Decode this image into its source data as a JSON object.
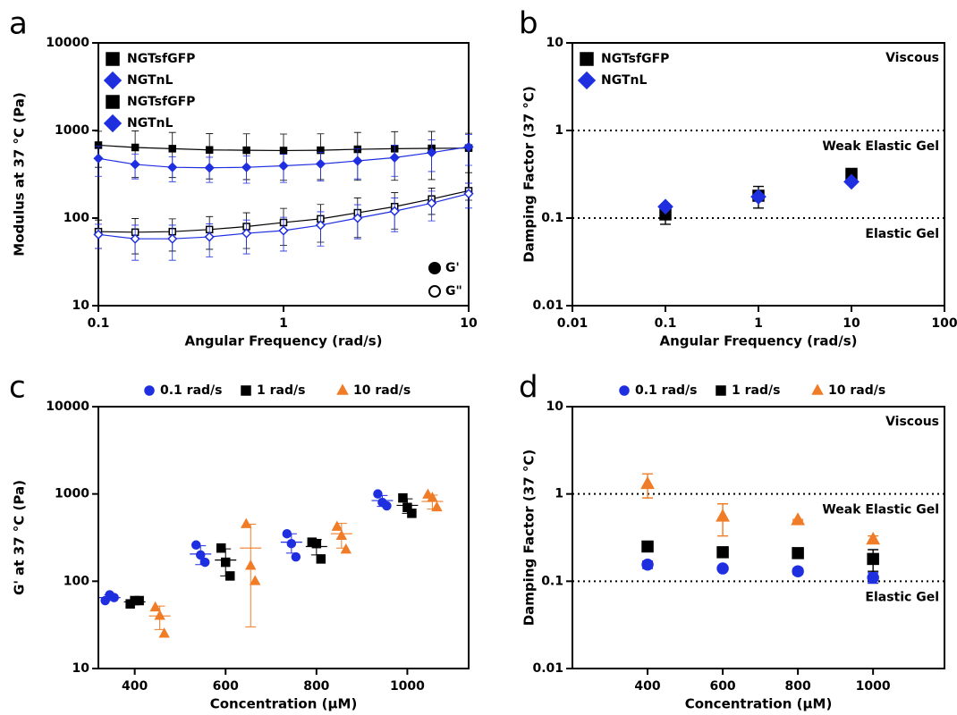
{
  "chart_data": [
    {
      "panel": "a",
      "type": "line",
      "xlabel": "Angular Frequency (rad/s)",
      "ylabel": "Modulus at 37 °C (Pa)",
      "x": [
        0.1,
        0.158,
        0.251,
        0.398,
        0.631,
        1,
        1.585,
        2.512,
        3.981,
        6.31,
        10
      ],
      "xlim": [
        0.1,
        10
      ],
      "xticks": [
        0.1,
        1,
        10
      ],
      "ylim": [
        10,
        10000
      ],
      "yticks": [
        10,
        100,
        1000,
        10000
      ],
      "xlog": true,
      "ylog": true,
      "lines": true,
      "legend": "upper left",
      "modulus_legend": "lower right",
      "series": [
        {
          "name": "NGTsfGFP",
          "modulus": "G'",
          "color": "#000000",
          "marker": "square",
          "filled": true,
          "values": [
            680,
            640,
            620,
            600,
            595,
            590,
            595,
            610,
            620,
            625,
            630
          ],
          "errors": [
            300,
            350,
            330,
            320,
            320,
            320,
            320,
            340,
            350,
            350,
            300
          ]
        },
        {
          "name": "NGTnL",
          "modulus": "G'",
          "color": "#1f2fe0",
          "marker": "diamond",
          "filled": true,
          "values": [
            480,
            410,
            380,
            375,
            380,
            395,
            415,
            450,
            490,
            560,
            650
          ],
          "errors": [
            180,
            130,
            120,
            120,
            130,
            140,
            150,
            170,
            190,
            220,
            250
          ]
        },
        {
          "name": "NGTsfGFP",
          "modulus": "G\"",
          "color": "#000000",
          "marker": "square",
          "filled": false,
          "values": [
            70,
            69,
            70,
            74,
            80,
            89,
            98,
            115,
            135,
            165,
            205
          ],
          "errors": [
            25,
            30,
            28,
            30,
            35,
            40,
            45,
            55,
            60,
            55,
            45
          ]
        },
        {
          "name": "NGTnL",
          "modulus": "G\"",
          "color": "#1f2fe0",
          "marker": "diamond",
          "filled": false,
          "values": [
            65,
            58,
            58,
            61,
            67,
            72,
            83,
            100,
            120,
            148,
            190
          ],
          "errors": [
            20,
            25,
            25,
            25,
            28,
            30,
            35,
            42,
            50,
            55,
            60
          ]
        }
      ]
    },
    {
      "panel": "b",
      "type": "scatter",
      "xlabel": "Angular Frequency (rad/s)",
      "ylabel": "Damping Factor (37 °C)",
      "x": [
        0.1,
        1,
        10
      ],
      "xlim": [
        0.01,
        100
      ],
      "xticks": [
        0.01,
        0.1,
        1,
        10,
        100
      ],
      "ylim": [
        0.01,
        10
      ],
      "yticks": [
        0.01,
        0.1,
        1,
        10
      ],
      "xlog": true,
      "ylog": true,
      "legend": "upper left",
      "hlines": [
        1,
        0.1
      ],
      "annotations": [
        "Viscous",
        "Weak Elastic Gel",
        "Elastic Gel"
      ],
      "series": [
        {
          "name": "NGTsfGFP",
          "color": "#000000",
          "marker": "square",
          "values": [
            0.11,
            0.18,
            0.32
          ],
          "errors": [
            0.025,
            0.05,
            0.02
          ]
        },
        {
          "name": "NGTnL",
          "color": "#1f2fe0",
          "marker": "diamond",
          "values": [
            0.135,
            0.175,
            0.26
          ],
          "errors": [
            0.005,
            0.01,
            0.01
          ]
        }
      ]
    },
    {
      "panel": "c",
      "type": "dot",
      "xlabel": "Concentration (µM)",
      "ylabel": "G' at 37 °C (Pa)",
      "x": [
        400,
        600,
        800,
        1000
      ],
      "xlim": [
        320,
        1135
      ],
      "xticks": [
        400,
        600,
        800,
        1000
      ],
      "ylim": [
        10,
        10000
      ],
      "yticks": [
        10,
        100,
        1000,
        10000
      ],
      "ylog": true,
      "legend": "top",
      "dodge": true,
      "series": [
        {
          "name": "0.1 rad/s",
          "color": "#1f2fe0",
          "marker": "circle",
          "replicates": [
            [
              60,
              70,
              65
            ],
            [
              260,
              200,
              165
            ],
            [
              350,
              270,
              190
            ],
            [
              1000,
              800,
              730
            ]
          ],
          "means": [
            65,
            205,
            280,
            840
          ],
          "sd": [
            5,
            50,
            70,
            120
          ]
        },
        {
          "name": "1 rad/s",
          "color": "#000000",
          "marker": "square",
          "replicates": [
            [
              55,
              60,
              60
            ],
            [
              240,
              165,
              115
            ],
            [
              280,
              270,
              180
            ],
            [
              900,
              700,
              600
            ]
          ],
          "means": [
            58,
            175,
            250,
            740
          ],
          "sd": [
            3,
            60,
            50,
            140
          ]
        },
        {
          "name": "10 rad/s",
          "color": "#f07c28",
          "marker": "triangle",
          "replicates": [
            [
              50,
              40,
              25
            ],
            [
              450,
              150,
              100
            ],
            [
              420,
              330,
              230
            ],
            [
              980,
              900,
              700
            ]
          ],
          "means": [
            40,
            240,
            350,
            820
          ],
          "sd": [
            12,
            210,
            110,
            150
          ]
        }
      ]
    },
    {
      "panel": "d",
      "type": "scatter",
      "xlabel": "Concentration (µM)",
      "ylabel": "Damping Factor (37 °C)",
      "x": [
        400,
        600,
        800,
        1000
      ],
      "xlim": [
        200,
        1190
      ],
      "xticks": [
        400,
        600,
        800,
        1000
      ],
      "ylim": [
        0.01,
        10
      ],
      "yticks": [
        0.01,
        0.1,
        1,
        10
      ],
      "ylog": true,
      "legend": "top",
      "hlines": [
        1,
        0.1
      ],
      "annotations": [
        "Viscous",
        "Weak Elastic Gel",
        "Elastic Gel"
      ],
      "series": [
        {
          "name": "0.1 rad/s",
          "color": "#1f2fe0",
          "marker": "circle",
          "values": [
            0.155,
            0.14,
            0.13,
            0.11
          ],
          "errors": [
            0.015,
            0.005,
            0.01,
            0.015
          ]
        },
        {
          "name": "1 rad/s",
          "color": "#000000",
          "marker": "square",
          "values": [
            0.25,
            0.215,
            0.21,
            0.18
          ],
          "errors": [
            0.02,
            0.02,
            0.01,
            0.05
          ]
        },
        {
          "name": "10 rad/s",
          "color": "#f07c28",
          "marker": "triangle",
          "values": [
            1.3,
            0.55,
            0.5,
            0.3
          ],
          "errors": [
            0.4,
            0.22,
            0.01,
            0.03
          ]
        }
      ]
    }
  ]
}
